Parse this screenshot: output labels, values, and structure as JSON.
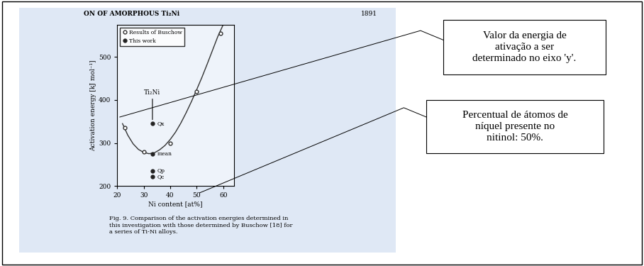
{
  "chart_data": {
    "type": "scatter",
    "x_label": "Ni content [at%]",
    "y_label": "Activation energy [kJ mol⁻¹]",
    "xlim": [
      20,
      64
    ],
    "ylim": [
      200,
      575
    ],
    "xticks": [
      20,
      30,
      40,
      50,
      60
    ],
    "yticks": [
      200,
      300,
      400,
      500
    ],
    "legend": "upper left",
    "series": [
      {
        "name": "Results of Buschow",
        "type": "scatter",
        "marker": "open_circle",
        "color": "#333333",
        "x": [
          23,
          30,
          40,
          50,
          59
        ],
        "values": [
          335,
          280,
          300,
          420,
          555
        ]
      },
      {
        "name": "This work",
        "type": "scatter",
        "marker": "filled_circle",
        "color": "#222222",
        "x": [
          33.3,
          33.3,
          33.3,
          33.3
        ],
        "values": [
          345,
          275,
          235,
          222
        ],
        "point_labels": [
          "Qx",
          "mean",
          "Qp",
          "Qc"
        ]
      },
      {
        "type": "line",
        "line_style": "solid",
        "color": "#333333",
        "x": [
          22,
          24,
          26,
          28,
          30,
          32,
          34,
          36,
          38,
          40,
          42,
          44,
          46,
          48,
          50,
          52,
          54,
          56,
          58,
          60
        ],
        "values": [
          345,
          318,
          298,
          285,
          278,
          275,
          277,
          284,
          294,
          308,
          325,
          346,
          370,
          396,
          424,
          453,
          484,
          516,
          548,
          575
        ]
      }
    ],
    "compound_label": "Ti₂Ni"
  },
  "page_header": {
    "title": "ON OF AMORPHOUS Ti₂Ni",
    "page": "1891"
  },
  "caption": "Fig. 9. Comparison of the activation energies determined in\nthis investigation with those determined by Buschow [18] for\na series of Ti-Ni alloys.",
  "callouts": [
    "Valor da energia de\nativação a ser\ndeterminado no eixo 'y'.",
    "Percentual de átomos de\nníquel presente no\nnitinol: 50%."
  ]
}
